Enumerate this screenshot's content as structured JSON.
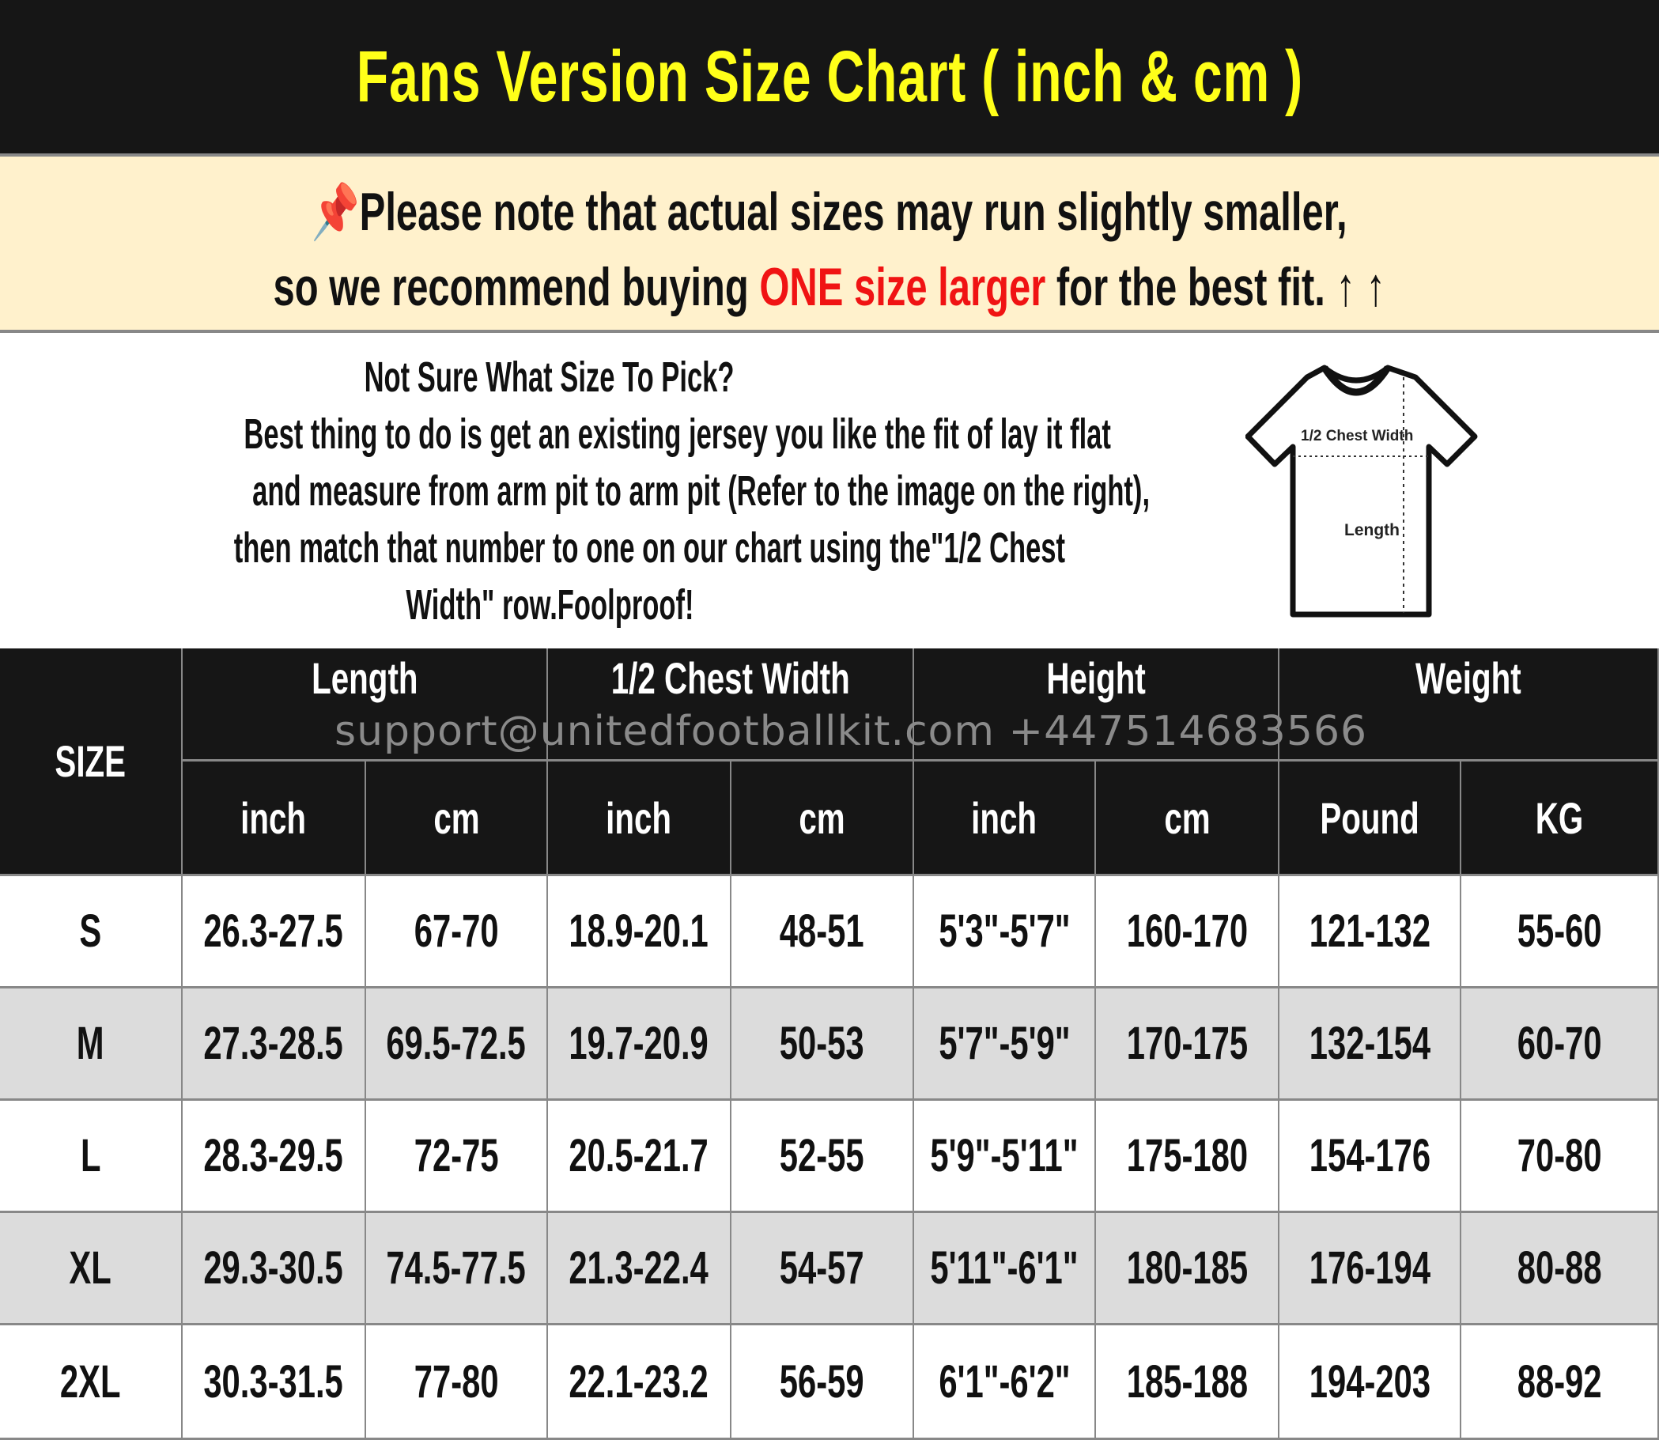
{
  "title": "Fans Version Size Chart ( inch & cm )",
  "notice": {
    "icon": "pushpin-icon",
    "line1": "Please note that actual sizes may run slightly smaller,",
    "line2_pre": "so we recommend buying ",
    "line2_highlight": "ONE size larger",
    "line2_post": " for the best fit. ",
    "arrows": "↑ ↑",
    "highlight_color": "#f01313"
  },
  "guide": {
    "heading": "Not Sure What Size To Pick?",
    "lines": [
      "Best thing to do is get an existing jersey you like the fit of lay it flat",
      "and measure from arm pit to arm pit (Refer to the image on the right),",
      "then match that number to one on our chart using the\"1/2 Chest",
      "Width\" row.Foolproof!"
    ],
    "diagram": {
      "chest_label": "1/2 Chest Width",
      "length_label": "Length"
    }
  },
  "watermark": "support@unitedfootballkit.com  +447514683566",
  "table": {
    "size_header": "SIZE",
    "groups": [
      "Length",
      "1/2 Chest Width",
      "Height",
      "Weight"
    ],
    "units": [
      "inch",
      "cm",
      "inch",
      "cm",
      "inch",
      "cm",
      "Pound",
      "KG"
    ],
    "rows": [
      [
        "S",
        "26.3-27.5",
        "67-70",
        "18.9-20.1",
        "48-51",
        "5'3\"-5'7\"",
        "160-170",
        "121-132",
        "55-60"
      ],
      [
        "M",
        "27.3-28.5",
        "69.5-72.5",
        "19.7-20.9",
        "50-53",
        "5'7\"-5'9\"",
        "170-175",
        "132-154",
        "60-70"
      ],
      [
        "L",
        "28.3-29.5",
        "72-75",
        "20.5-21.7",
        "52-55",
        "5'9\"-5'11\"",
        "175-180",
        "154-176",
        "70-80"
      ],
      [
        "XL",
        "29.3-30.5",
        "74.5-77.5",
        "21.3-22.4",
        "54-57",
        "5'11\"-6'1\"",
        "180-185",
        "176-194",
        "80-88"
      ],
      [
        "2XL",
        "30.3-31.5",
        "77-80",
        "22.1-23.2",
        "56-59",
        "6'1\"-6'2\"",
        "185-188",
        "194-203",
        "88-92"
      ]
    ]
  }
}
